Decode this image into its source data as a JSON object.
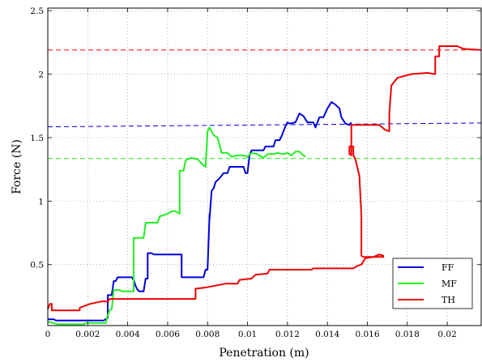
{
  "chart_data": {
    "type": "line",
    "xlabel": "Penetration (m)",
    "ylabel": "Force (N)",
    "xlim": [
      0,
      0.0217
    ],
    "ylim": [
      0.02,
      2.52
    ],
    "xticks": [
      0,
      0.002,
      0.004,
      0.006,
      0.008,
      0.01,
      0.012,
      0.014,
      0.016,
      0.018,
      0.02
    ],
    "xtick_labels": [
      "0",
      "0.002",
      "0.004",
      "0.006",
      "0.008",
      "0.01",
      "0.012",
      "0.014",
      "0.016",
      "0.018",
      "0.02"
    ],
    "yticks": [
      0.5,
      1,
      1.5,
      2,
      2.5
    ],
    "ytick_labels": [
      "0.5",
      "1",
      "1.5",
      "2",
      "2.5"
    ],
    "grid": true,
    "legend_position": "bottom-right",
    "series": [
      {
        "name": "FF",
        "color": "#0000dd",
        "points": [
          [
            0,
            0.07
          ],
          [
            0.0003,
            0.07
          ],
          [
            0.0004,
            0.06
          ],
          [
            0.0028,
            0.06
          ],
          [
            0.003,
            0.08
          ],
          [
            0.003,
            0.26
          ],
          [
            0.0032,
            0.26
          ],
          [
            0.0033,
            0.37
          ],
          [
            0.0034,
            0.37
          ],
          [
            0.0035,
            0.4
          ],
          [
            0.0042,
            0.4
          ],
          [
            0.0043,
            0.38
          ],
          [
            0.0044,
            0.33
          ],
          [
            0.0045,
            0.3
          ],
          [
            0.0046,
            0.29
          ],
          [
            0.0048,
            0.29
          ],
          [
            0.0049,
            0.39
          ],
          [
            0.005,
            0.39
          ],
          [
            0.005,
            0.59
          ],
          [
            0.0052,
            0.59
          ],
          [
            0.0053,
            0.58
          ],
          [
            0.0067,
            0.58
          ],
          [
            0.0067,
            0.4
          ],
          [
            0.0078,
            0.4
          ],
          [
            0.0079,
            0.46
          ],
          [
            0.008,
            0.46
          ],
          [
            0.0081,
            0.9
          ],
          [
            0.0081,
            0.86
          ],
          [
            0.0082,
            1.08
          ],
          [
            0.0083,
            1.1
          ],
          [
            0.0084,
            1.15
          ],
          [
            0.0086,
            1.18
          ],
          [
            0.0088,
            1.22
          ],
          [
            0.009,
            1.22
          ],
          [
            0.0091,
            1.27
          ],
          [
            0.0098,
            1.27
          ],
          [
            0.0099,
            1.22
          ],
          [
            0.01,
            1.22
          ],
          [
            0.0101,
            1.36
          ],
          [
            0.0102,
            1.4
          ],
          [
            0.0108,
            1.4
          ],
          [
            0.0109,
            1.43
          ],
          [
            0.0113,
            1.43
          ],
          [
            0.0114,
            1.48
          ],
          [
            0.0116,
            1.48
          ],
          [
            0.0117,
            1.51
          ],
          [
            0.0119,
            1.59
          ],
          [
            0.012,
            1.62
          ],
          [
            0.0121,
            1.61
          ],
          [
            0.0124,
            1.62
          ],
          [
            0.0126,
            1.69
          ],
          [
            0.0128,
            1.67
          ],
          [
            0.013,
            1.62
          ],
          [
            0.0133,
            1.62
          ],
          [
            0.0134,
            1.58
          ],
          [
            0.0136,
            1.66
          ],
          [
            0.0138,
            1.66
          ],
          [
            0.014,
            1.73
          ],
          [
            0.0142,
            1.78
          ],
          [
            0.0144,
            1.76
          ],
          [
            0.0146,
            1.73
          ],
          [
            0.0147,
            1.66
          ],
          [
            0.0149,
            1.61
          ],
          [
            0.0151,
            1.6
          ],
          [
            0.0152,
            1.62
          ]
        ]
      },
      {
        "name": "MF",
        "color": "#22ee22",
        "points": [
          [
            0,
            0.05
          ],
          [
            0.0003,
            0.04
          ],
          [
            0.0005,
            0.03
          ],
          [
            0.0018,
            0.03
          ],
          [
            0.0019,
            0.04
          ],
          [
            0.0029,
            0.04
          ],
          [
            0.003,
            0.1
          ],
          [
            0.0031,
            0.14
          ],
          [
            0.0032,
            0.15
          ],
          [
            0.0033,
            0.3
          ],
          [
            0.0036,
            0.3
          ],
          [
            0.0037,
            0.29
          ],
          [
            0.0043,
            0.29
          ],
          [
            0.0043,
            0.71
          ],
          [
            0.0048,
            0.71
          ],
          [
            0.0049,
            0.83
          ],
          [
            0.0055,
            0.83
          ],
          [
            0.0056,
            0.88
          ],
          [
            0.006,
            0.9
          ],
          [
            0.0062,
            0.92
          ],
          [
            0.0064,
            0.92
          ],
          [
            0.0066,
            0.9
          ],
          [
            0.0066,
            1.24
          ],
          [
            0.0068,
            1.24
          ],
          [
            0.0069,
            1.32
          ],
          [
            0.007,
            1.33
          ],
          [
            0.0072,
            1.34
          ],
          [
            0.0075,
            1.33
          ],
          [
            0.0078,
            1.28
          ],
          [
            0.0079,
            1.27
          ],
          [
            0.008,
            1.55
          ],
          [
            0.0081,
            1.58
          ],
          [
            0.0083,
            1.52
          ],
          [
            0.0085,
            1.5
          ],
          [
            0.0087,
            1.38
          ],
          [
            0.009,
            1.38
          ],
          [
            0.0092,
            1.35
          ],
          [
            0.0095,
            1.36
          ],
          [
            0.0098,
            1.36
          ],
          [
            0.01,
            1.35
          ],
          [
            0.0102,
            1.38
          ],
          [
            0.0105,
            1.37
          ],
          [
            0.0108,
            1.34
          ],
          [
            0.011,
            1.37
          ],
          [
            0.0113,
            1.37
          ],
          [
            0.0115,
            1.38
          ],
          [
            0.0118,
            1.37
          ],
          [
            0.012,
            1.38
          ],
          [
            0.0122,
            1.36
          ],
          [
            0.0124,
            1.39
          ],
          [
            0.0126,
            1.39
          ],
          [
            0.0128,
            1.36
          ],
          [
            0.0129,
            1.35
          ]
        ]
      },
      {
        "name": "TH",
        "color": "#ee0000",
        "points": [
          [
            0,
            0.15
          ],
          [
            0.0001,
            0.19
          ],
          [
            0.0002,
            0.19
          ],
          [
            0.0002,
            0.14
          ],
          [
            0.0016,
            0.14
          ],
          [
            0.0016,
            0.16
          ],
          [
            0.0021,
            0.19
          ],
          [
            0.0027,
            0.21
          ],
          [
            0.003,
            0.21
          ],
          [
            0.0031,
            0.23
          ],
          [
            0.0074,
            0.23
          ],
          [
            0.0074,
            0.31
          ],
          [
            0.0079,
            0.32
          ],
          [
            0.0089,
            0.35
          ],
          [
            0.0095,
            0.35
          ],
          [
            0.0096,
            0.38
          ],
          [
            0.0102,
            0.39
          ],
          [
            0.0104,
            0.42
          ],
          [
            0.011,
            0.43
          ],
          [
            0.0111,
            0.46
          ],
          [
            0.0132,
            0.46
          ],
          [
            0.0133,
            0.47
          ],
          [
            0.0153,
            0.47
          ],
          [
            0.0155,
            0.49
          ],
          [
            0.0157,
            0.5
          ],
          [
            0.0159,
            0.55
          ],
          [
            0.0163,
            0.56
          ],
          [
            0.0166,
            0.58
          ],
          [
            0.0168,
            0.57
          ],
          [
            0.0168,
            0.56
          ],
          [
            0.0158,
            0.56
          ],
          [
            0.0157,
            0.57
          ],
          [
            0.0157,
            0.89
          ],
          [
            0.0156,
            1.2
          ],
          [
            0.0154,
            1.33
          ],
          [
            0.0153,
            1.36
          ],
          [
            0.0153,
            1.43
          ],
          [
            0.0151,
            1.43
          ],
          [
            0.0151,
            1.37
          ],
          [
            0.0152,
            1.36
          ],
          [
            0.0152,
            1.6
          ],
          [
            0.0158,
            1.6
          ],
          [
            0.0166,
            1.6
          ],
          [
            0.0169,
            1.56
          ],
          [
            0.0171,
            1.55
          ],
          [
            0.0171,
            1.69
          ],
          [
            0.0172,
            1.91
          ],
          [
            0.0175,
            1.97
          ],
          [
            0.0182,
            2.0
          ],
          [
            0.019,
            2.01
          ],
          [
            0.0194,
            2.0
          ],
          [
            0.0194,
            2.14
          ],
          [
            0.0196,
            2.14
          ],
          [
            0.0196,
            2.22
          ],
          [
            0.0205,
            2.22
          ],
          [
            0.0208,
            2.2
          ],
          [
            0.0217,
            2.19
          ]
        ]
      }
    ],
    "reference_lines": [
      {
        "series": "TH",
        "y_start": 2.19,
        "y_end": 2.19,
        "style": "dashed",
        "color": "#ee0000"
      },
      {
        "series": "FF",
        "y_start": 1.585,
        "y_end": 1.615,
        "style": "dashed",
        "color": "#0000dd"
      },
      {
        "series": "MF",
        "y_start": 1.335,
        "y_end": 1.335,
        "style": "dashed",
        "color": "#22ee22"
      }
    ]
  }
}
